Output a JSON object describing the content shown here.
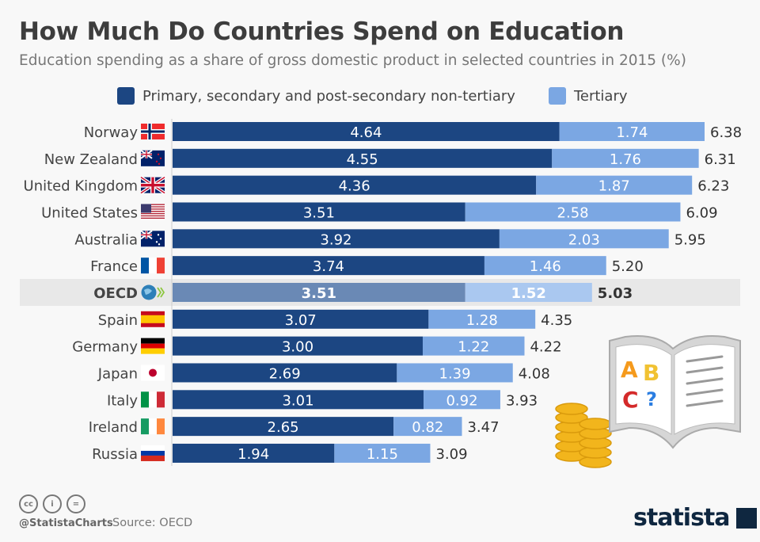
{
  "title": "How Much Do Countries Spend on Education",
  "subtitle": "Education spending as a share of gross domestic product in selected countries in 2015 (%)",
  "footer": {
    "handle": "@StatistaCharts",
    "source": "Source: OECD",
    "logo": "statista"
  },
  "colors": {
    "primary": "#1c4682",
    "tertiary": "#7ba7e3",
    "primary_highlight": "#6a89b5",
    "tertiary_highlight": "#aac8f0",
    "highlight_row": "#e8e8e8"
  },
  "chart_data": {
    "type": "bar",
    "orientation": "horizontal",
    "stacked": true,
    "categories": [
      "Norway",
      "New Zealand",
      "United Kingdom",
      "United States",
      "Australia",
      "France",
      "OECD",
      "Spain",
      "Germany",
      "Japan",
      "Italy",
      "Ireland",
      "Russia"
    ],
    "highlight": "OECD",
    "series": [
      {
        "name": "Primary, secondary and post-secondary non-tertiary",
        "values": [
          4.64,
          4.55,
          4.36,
          3.51,
          3.92,
          3.74,
          3.51,
          3.07,
          3.0,
          2.69,
          3.01,
          2.65,
          1.94
        ],
        "labels": [
          "4.64",
          "4.55",
          "4.36",
          "3.51",
          "3.92",
          "3.74",
          "3.51",
          "3.07",
          "3.00",
          "2.69",
          "3.01",
          "2.65",
          "1.94"
        ]
      },
      {
        "name": "Tertiary",
        "values": [
          1.74,
          1.76,
          1.87,
          2.58,
          2.03,
          1.46,
          1.52,
          1.28,
          1.22,
          1.39,
          0.92,
          0.82,
          1.15
        ],
        "labels": [
          "1.74",
          "1.76",
          "1.87",
          "2.58",
          "2.03",
          "1.46",
          "1.52",
          "1.28",
          "1.22",
          "1.39",
          "0.92",
          "0.82",
          "1.15"
        ]
      }
    ],
    "totals": [
      "6.38",
      "6.31",
      "6.23",
      "6.09",
      "5.95",
      "5.20",
      "5.03",
      "4.35",
      "4.22",
      "4.08",
      "3.93",
      "3.47",
      "3.09"
    ],
    "flags": [
      "norway",
      "new-zealand",
      "united-kingdom",
      "united-states",
      "australia",
      "france",
      "oecd",
      "spain",
      "germany",
      "japan",
      "italy",
      "ireland",
      "russia"
    ],
    "legend": "top",
    "grid": false,
    "xlim": [
      0,
      6.38
    ]
  }
}
